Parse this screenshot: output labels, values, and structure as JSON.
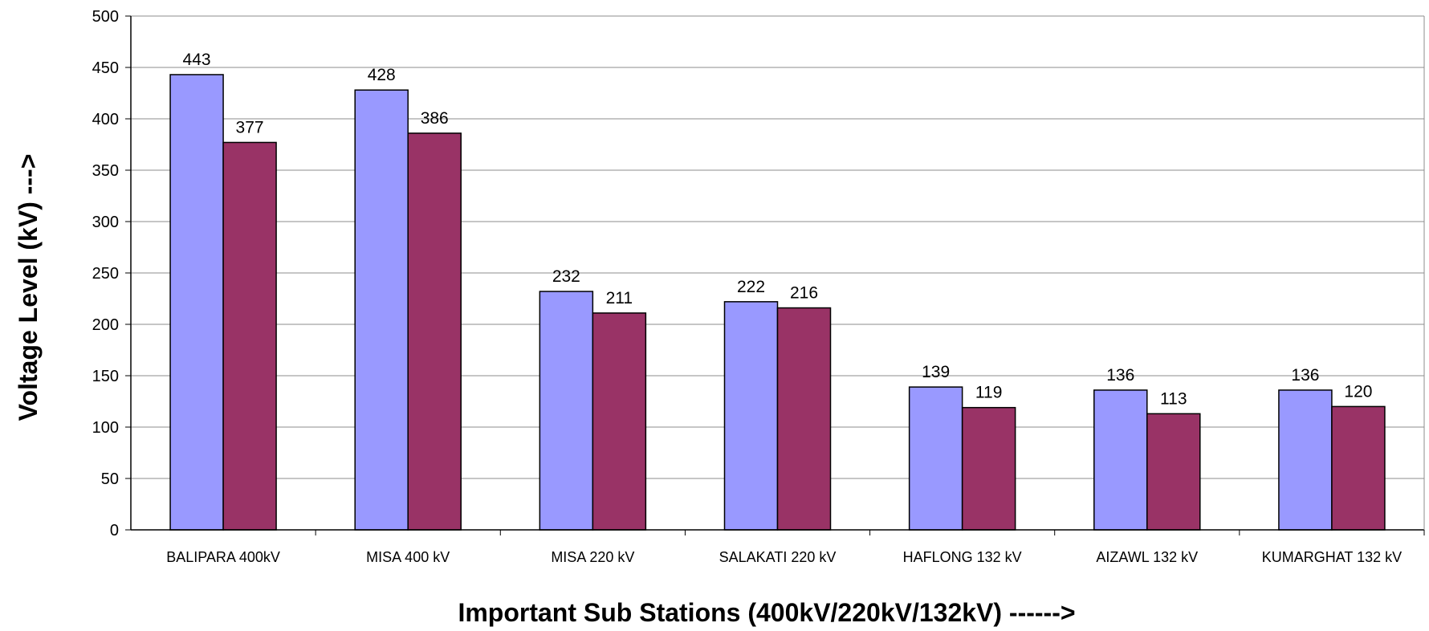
{
  "chart_data": {
    "type": "bar",
    "title": "",
    "xlabel": "Important Sub Stations (400kV/220kV/132kV) ------>",
    "ylabel": "Voltage Level (kV) --->",
    "ylim": [
      0,
      500
    ],
    "yticks": [
      0,
      50,
      100,
      150,
      200,
      250,
      300,
      350,
      400,
      450,
      500
    ],
    "grid": true,
    "legend": "none",
    "categories": [
      "BALIPARA  400kV",
      "MISA  400 kV",
      "MISA  220 kV",
      "SALAKATI 220 kV",
      "HAFLONG 132 kV",
      "AIZAWL  132 kV",
      "KUMARGHAT 132 kV"
    ],
    "series": [
      {
        "values": [
          443,
          428,
          232,
          222,
          139,
          136,
          136
        ],
        "color": "#9999ff"
      },
      {
        "values": [
          377,
          386,
          211,
          216,
          119,
          113,
          120
        ],
        "color": "#993366"
      }
    ]
  }
}
